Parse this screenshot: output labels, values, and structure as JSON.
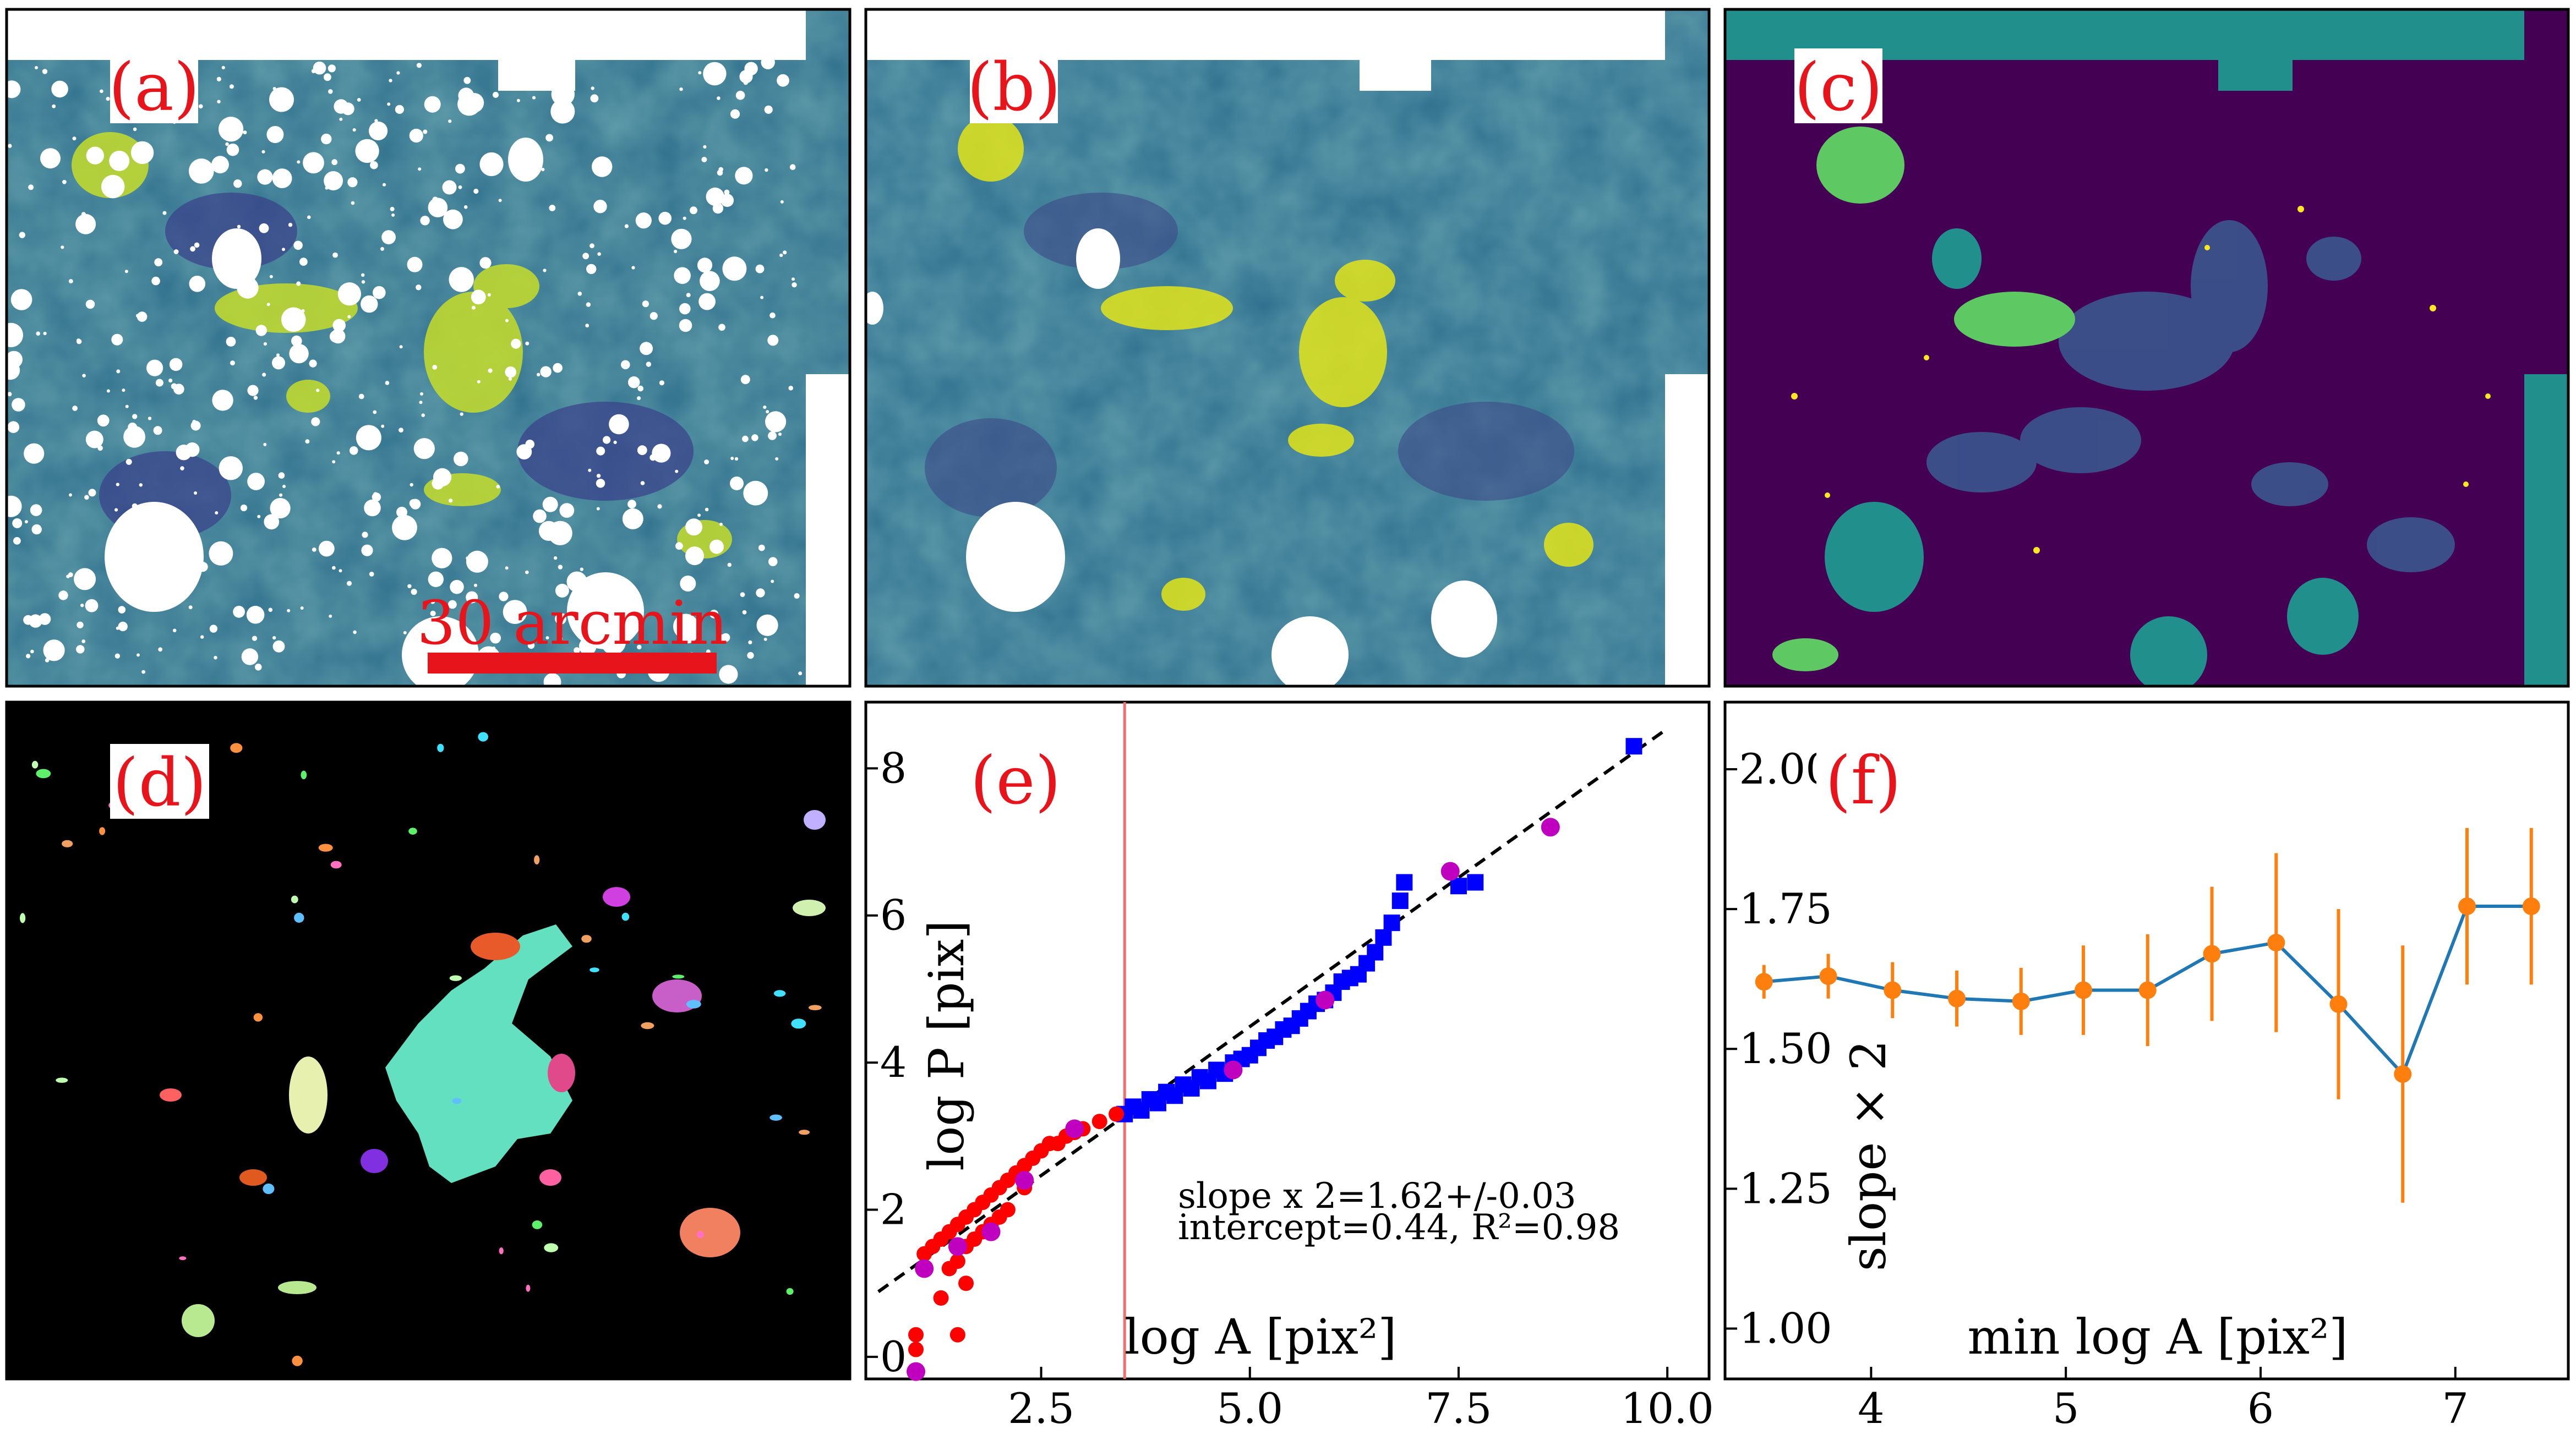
{
  "panels": {
    "a": {
      "label": "(a)",
      "scale_bar_text": "30 arcmin"
    },
    "b": {
      "label": "(b)"
    },
    "c": {
      "label": "(c)"
    },
    "d": {
      "label": "(d)"
    },
    "e": {
      "label": "(e)"
    },
    "f": {
      "label": "(f)"
    }
  },
  "colors": {
    "map_dark": "#3f4a8a",
    "map_mid": "#1f9e89",
    "map_bright": "#fde725",
    "map_green": "#5ec962",
    "mask_purple": "#440154",
    "mask_teal": "#21908d",
    "accent_red": "#e8141b",
    "blue_points": "#0000ff",
    "red_points": "#ff0000",
    "magenta_points": "#bf00bf",
    "line_blue": "#1f77b4",
    "marker_orange": "#ff7f0e"
  },
  "chart_data": [
    {
      "id": "e",
      "type": "scatter",
      "xlabel": "log A [pix²]",
      "ylabel": "log P [pix]",
      "xlim": [
        0.4,
        10.5
      ],
      "ylim": [
        -0.3,
        8.9
      ],
      "xticks": [
        2.5,
        5.0,
        7.5,
        10.0
      ],
      "xtick_labels": [
        "2.5",
        "5.0",
        "7.5",
        "10.0"
      ],
      "yticks": [
        0,
        2,
        4,
        6,
        8
      ],
      "ytick_labels": [
        "0",
        "2",
        "4",
        "6",
        "8"
      ],
      "vertical_line_x": 3.5,
      "fit": {
        "slope": 0.81,
        "intercept": 0.44,
        "x_range": [
          0.55,
          10.0
        ]
      },
      "annotation_line1": "slope x 2=1.62+/-0.03",
      "annotation_line2": "intercept=0.44, R²=0.98",
      "series": [
        {
          "name": "blue squares",
          "marker": "square",
          "points": [
            [
              3.5,
              3.3
            ],
            [
              3.6,
              3.4
            ],
            [
              3.7,
              3.35
            ],
            [
              3.8,
              3.5
            ],
            [
              3.9,
              3.45
            ],
            [
              4.0,
              3.6
            ],
            [
              4.1,
              3.55
            ],
            [
              4.2,
              3.7
            ],
            [
              4.3,
              3.65
            ],
            [
              4.4,
              3.8
            ],
            [
              4.5,
              3.75
            ],
            [
              4.6,
              3.9
            ],
            [
              4.7,
              3.85
            ],
            [
              4.8,
              4.0
            ],
            [
              4.9,
              4.05
            ],
            [
              5.0,
              4.1
            ],
            [
              5.1,
              4.2
            ],
            [
              5.2,
              4.3
            ],
            [
              5.3,
              4.35
            ],
            [
              5.4,
              4.45
            ],
            [
              5.5,
              4.5
            ],
            [
              5.6,
              4.6
            ],
            [
              5.7,
              4.7
            ],
            [
              5.8,
              4.8
            ],
            [
              5.9,
              4.85
            ],
            [
              6.0,
              4.95
            ],
            [
              6.1,
              5.1
            ],
            [
              6.2,
              5.15
            ],
            [
              6.3,
              5.2
            ],
            [
              6.4,
              5.35
            ],
            [
              6.5,
              5.5
            ],
            [
              6.6,
              5.7
            ],
            [
              6.7,
              5.9
            ],
            [
              6.8,
              6.2
            ],
            [
              6.85,
              6.45
            ],
            [
              7.5,
              6.4
            ],
            [
              7.7,
              6.45
            ],
            [
              9.6,
              8.3
            ]
          ]
        },
        {
          "name": "red circles",
          "marker": "circle",
          "points": [
            [
              1.0,
              0.3
            ],
            [
              1.0,
              0.1
            ],
            [
              1.1,
              1.4
            ],
            [
              1.2,
              1.5
            ],
            [
              1.3,
              1.6
            ],
            [
              1.3,
              0.8
            ],
            [
              1.4,
              1.7
            ],
            [
              1.4,
              1.2
            ],
            [
              1.5,
              1.8
            ],
            [
              1.5,
              1.3
            ],
            [
              1.5,
              0.3
            ],
            [
              1.6,
              1.9
            ],
            [
              1.6,
              1.5
            ],
            [
              1.6,
              1.0
            ],
            [
              1.7,
              2.0
            ],
            [
              1.7,
              1.6
            ],
            [
              1.8,
              2.1
            ],
            [
              1.8,
              1.7
            ],
            [
              1.9,
              2.2
            ],
            [
              1.9,
              1.8
            ],
            [
              2.0,
              2.3
            ],
            [
              2.0,
              1.9
            ],
            [
              2.1,
              2.4
            ],
            [
              2.1,
              2.0
            ],
            [
              2.2,
              2.5
            ],
            [
              2.3,
              2.6
            ],
            [
              2.3,
              2.3
            ],
            [
              2.4,
              2.7
            ],
            [
              2.5,
              2.8
            ],
            [
              2.6,
              2.9
            ],
            [
              2.7,
              2.9
            ],
            [
              2.8,
              3.0
            ],
            [
              2.9,
              3.05
            ],
            [
              3.0,
              3.1
            ],
            [
              3.2,
              3.2
            ],
            [
              3.4,
              3.3
            ]
          ]
        },
        {
          "name": "magenta circles",
          "marker": "circle",
          "points": [
            [
              1.0,
              -0.2
            ],
            [
              1.1,
              1.2
            ],
            [
              1.5,
              1.5
            ],
            [
              1.9,
              1.7
            ],
            [
              2.3,
              2.4
            ],
            [
              2.9,
              3.1
            ],
            [
              4.8,
              3.9
            ],
            [
              5.9,
              4.85
            ],
            [
              7.4,
              6.6
            ],
            [
              8.6,
              7.2
            ]
          ]
        }
      ]
    },
    {
      "id": "f",
      "type": "line",
      "xlabel": "min log A [pix²]",
      "ylabel": "slope × 2",
      "xlim": [
        3.25,
        7.58
      ],
      "ylim": [
        0.91,
        2.12
      ],
      "xticks": [
        4,
        5,
        6,
        7
      ],
      "xtick_labels": [
        "4",
        "5",
        "6",
        "7"
      ],
      "yticks": [
        1.0,
        1.25,
        1.5,
        1.75,
        2.0
      ],
      "ytick_labels": [
        "1.00",
        "1.25",
        "1.50",
        "1.75",
        "2.00"
      ],
      "x": [
        3.45,
        3.78,
        4.11,
        4.44,
        4.77,
        5.09,
        5.42,
        5.75,
        6.08,
        6.4,
        6.73,
        7.06,
        7.39
      ],
      "y": [
        1.62,
        1.63,
        1.605,
        1.59,
        1.585,
        1.605,
        1.605,
        1.67,
        1.69,
        1.58,
        1.455,
        1.755,
        1.755
      ],
      "yerr": [
        0.03,
        0.04,
        0.05,
        0.05,
        0.06,
        0.08,
        0.1,
        0.12,
        0.16,
        0.17,
        0.23,
        0.14,
        0.14
      ]
    }
  ]
}
